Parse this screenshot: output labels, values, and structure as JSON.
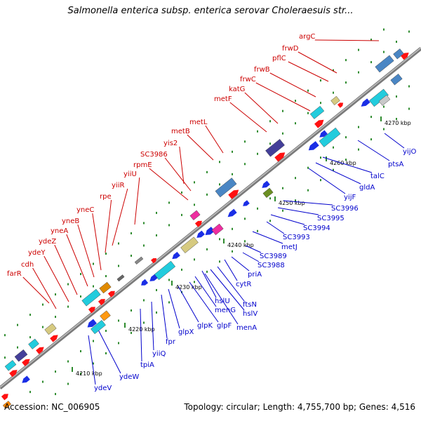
{
  "title": "Salmonella enterica subsp. enterica serovar Choleraesuis str...",
  "footer": {
    "accession": "Accession: NC_006905",
    "summary": "Topology: circular; Length: 4,755,700 bp; Genes: 4,516"
  },
  "colors": {
    "top_strand_label": "#cc0000",
    "bottom_strand_label": "#0000cc",
    "forward_gene": "#ff1111",
    "reverse_gene": "#1a2ee6",
    "backbone": "#8c8c8c",
    "ticks": "#2e8b2e"
  },
  "kbp_labels": [
    "4210 kbp",
    "4220 kbp",
    "4230 kbp",
    "4240 kbp",
    "4250 kbp",
    "4260 kbp",
    "4270 kbp"
  ],
  "top_genes": [
    "farR",
    "cdh",
    "ydeY",
    "ydeZ",
    "yneA",
    "yneB",
    "yneC",
    "rpe",
    "yiiR",
    "yiiU",
    "rpmE",
    "SC3986",
    "yis2",
    "metB",
    "metL",
    "metF",
    "katG",
    "frwC",
    "frwB",
    "pflC",
    "frwD",
    "argC"
  ],
  "bottom_genes": [
    "ydeV",
    "ydeW",
    "tpiA",
    "yiiQ",
    "fpr",
    "glpX",
    "glpK",
    "glpF",
    "menG",
    "menA",
    "hslU",
    "hslV",
    "ftsN",
    "cytR",
    "priA",
    "SC3988",
    "SC3989",
    "metJ",
    "SC3993",
    "SC3994",
    "SC3995",
    "SC3996",
    "yijF",
    "gldA",
    "talC",
    "ptsA",
    "yijO"
  ]
}
